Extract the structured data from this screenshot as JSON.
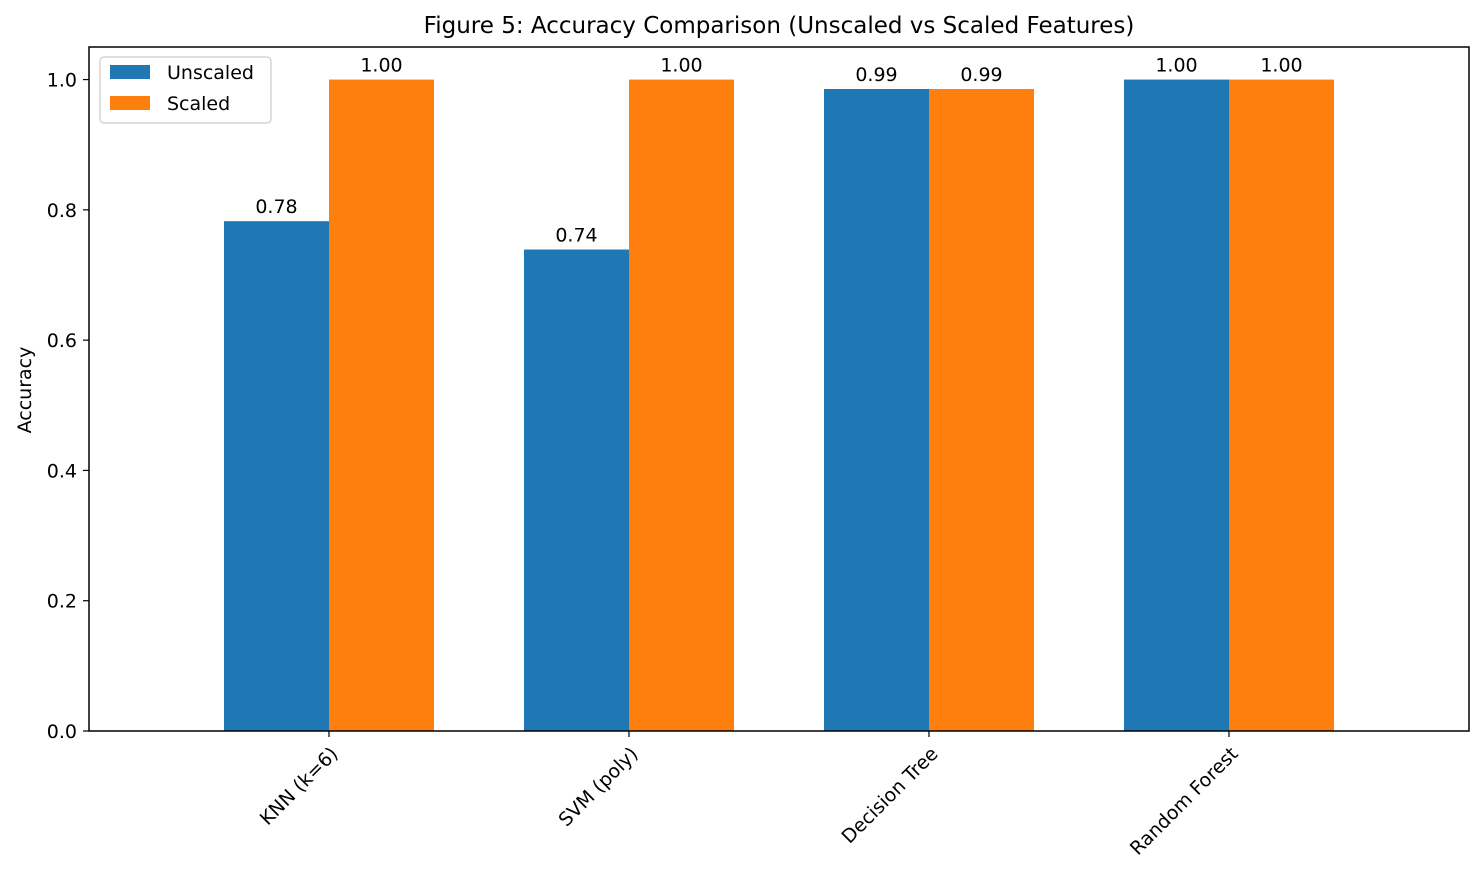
{
  "chart_data": {
    "type": "bar",
    "title": "Figure 5: Accuracy Comparison (Unscaled vs Scaled Features)",
    "xlabel": "",
    "ylabel": "Accuracy",
    "categories": [
      "KNN (k=6)",
      "SVM (poly)",
      "Decision Tree",
      "Random Forest"
    ],
    "series": [
      {
        "name": "Unscaled",
        "color": "#1f77b4",
        "values": [
          0.7826,
          0.7391,
          0.9855,
          1.0
        ],
        "labels": [
          "0.78",
          "0.74",
          "0.99",
          "1.00"
        ]
      },
      {
        "name": "Scaled",
        "color": "#ff7f0e",
        "values": [
          1.0,
          1.0,
          0.9855,
          1.0
        ],
        "labels": [
          "1.00",
          "1.00",
          "0.99",
          "1.00"
        ]
      }
    ],
    "ylim": [
      0,
      1.05
    ],
    "yticks": [
      "0.0",
      "0.2",
      "0.4",
      "0.6",
      "0.8",
      "1.0"
    ],
    "ytick_values": [
      0.0,
      0.2,
      0.4,
      0.6,
      0.8,
      1.0
    ],
    "xtick_rotation_deg": 45,
    "legend_position": "top-left",
    "grid": false
  }
}
